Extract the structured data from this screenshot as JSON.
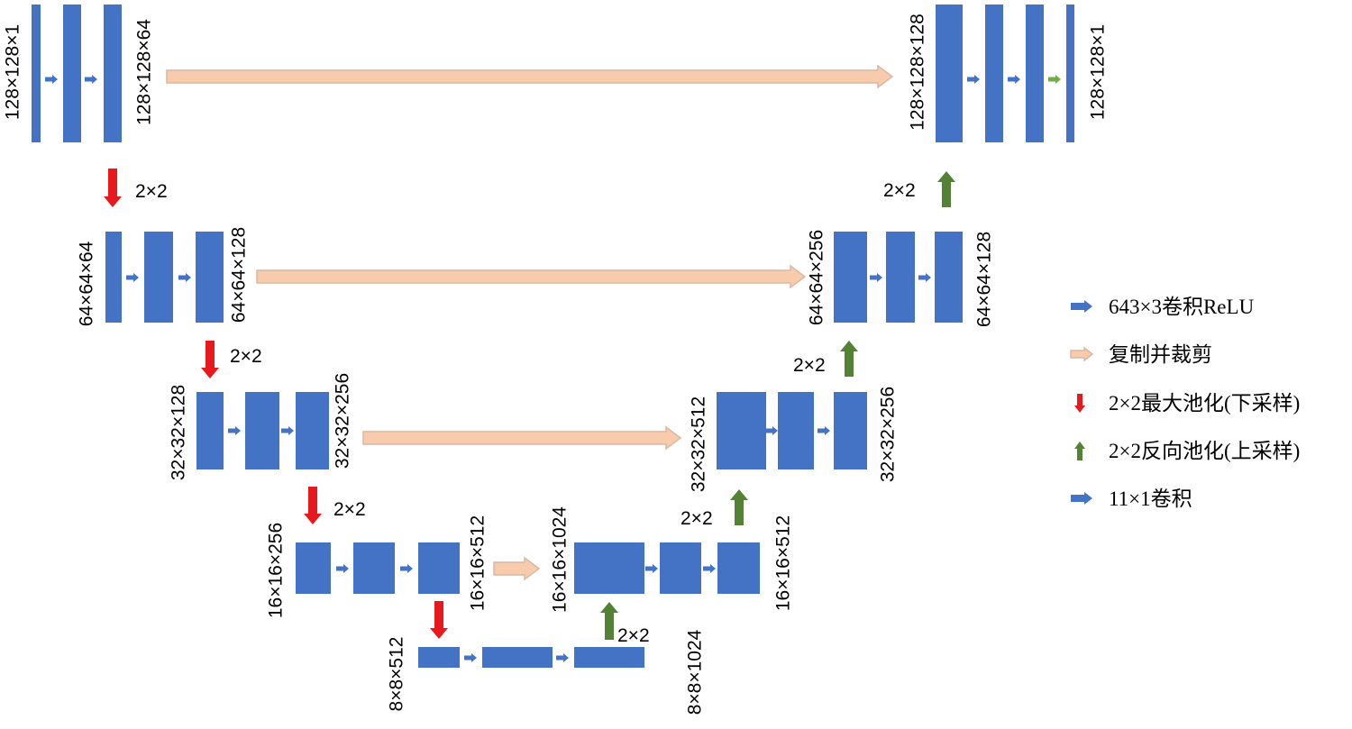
{
  "colors": {
    "block": "#4472C4",
    "conv_arrow": "#4472C4",
    "copy_arrow": "#F8CBAD",
    "pool_arrow": "#E8191C",
    "up_arrow": "#548235",
    "final_arrow": "#70AD47"
  },
  "encoder": {
    "l1": {
      "in": "128×128×1",
      "out": "128×128×64"
    },
    "l2": {
      "in": "64×64×64",
      "out": "64×64×128"
    },
    "l3": {
      "in": "32×32×128",
      "out": "32×32×256"
    },
    "l4": {
      "in": "16×16×256",
      "out": "16×16×512"
    },
    "l5": {
      "in": "8×8×512",
      "out": "8×8×1024"
    }
  },
  "decoder": {
    "l1": {
      "in": "128×128×128",
      "out": "128×128×1"
    },
    "l2": {
      "in": "64×64×256",
      "out": "64×64×128"
    },
    "l3": {
      "in": "32×32×512",
      "out": "32×32×256"
    },
    "l4": {
      "in": "16×16×1024",
      "out": "16×16×512"
    }
  },
  "pool_labels": [
    "2×2",
    "2×2",
    "2×2",
    "2×2",
    "2×2",
    "2×2",
    "2×2"
  ],
  "legend": [
    {
      "icon": "blue-right-arrow",
      "label": "643×3卷积ReLU"
    },
    {
      "icon": "beige-right-arrow",
      "label": "复制并裁剪"
    },
    {
      "icon": "red-down-arrow",
      "label": "2×2最大池化(下采样)"
    },
    {
      "icon": "green-up-arrow",
      "label": "2×2反向池化(上采样)"
    },
    {
      "icon": "blue-right-arrow",
      "label": "11×1卷积"
    }
  ]
}
